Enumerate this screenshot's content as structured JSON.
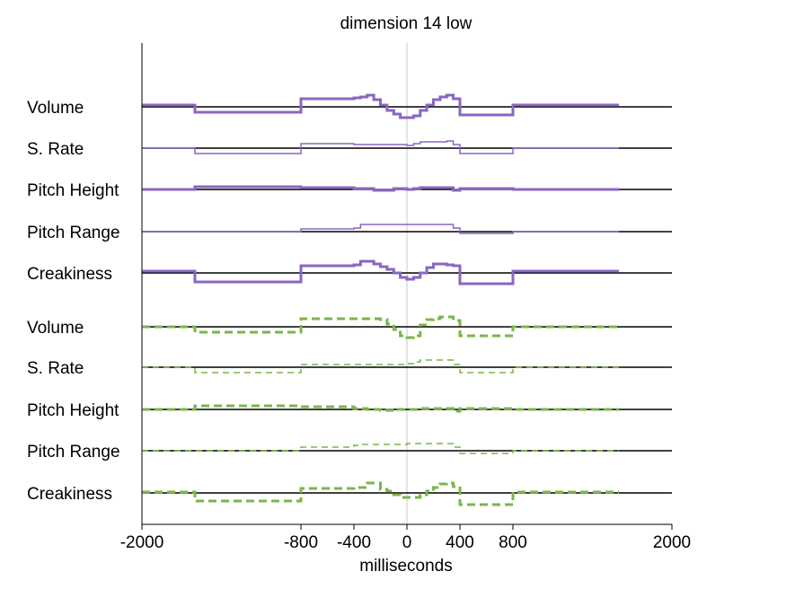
{
  "chart_data": {
    "type": "line",
    "title": "dimension 14 low",
    "xlabel": "milliseconds",
    "ylabel": "",
    "xlim": [
      -2000,
      2000
    ],
    "xticks": [
      -2000,
      -800,
      -400,
      0,
      400,
      800,
      2000
    ],
    "tick_labels": [
      "-2000",
      "-800",
      "-400",
      "0",
      "400",
      "800",
      "2000"
    ],
    "grid": false,
    "legend": "none",
    "colors": {
      "top": "#8a66c2",
      "bottom": "#7ab648",
      "baseline": "#000000",
      "zero_line": "#c8c8c8"
    },
    "x_edges": [
      -2000,
      -1600,
      -800,
      -400,
      -350,
      -300,
      -250,
      -200,
      -150,
      -100,
      -50,
      0,
      50,
      100,
      150,
      200,
      250,
      300,
      350,
      400,
      800,
      1600,
      2000
    ],
    "series": [
      {
        "label": "Volume",
        "group": "top",
        "style": "solid-thick",
        "values": [
          2,
          -6,
          9,
          10,
          11,
          13,
          8,
          2,
          -4,
          -8,
          -12,
          -12,
          -10,
          -4,
          2,
          8,
          11,
          13,
          9,
          -9,
          2
        ]
      },
      {
        "label": "S. Rate",
        "group": "top",
        "style": "solid-thin",
        "values": [
          0,
          -6,
          5,
          4,
          4,
          4,
          4,
          4,
          4,
          4,
          4,
          3,
          5,
          7,
          7,
          7,
          7,
          8,
          4,
          -6,
          0
        ]
      },
      {
        "label": "Pitch Height",
        "group": "top",
        "style": "solid-thick",
        "values": [
          0,
          3,
          2,
          1,
          1,
          1,
          -1,
          -1,
          -1,
          1,
          1,
          0,
          1,
          2,
          2,
          2,
          2,
          2,
          -1,
          1,
          0
        ]
      },
      {
        "label": "Pitch Range",
        "group": "top",
        "style": "solid-thin",
        "values": [
          0,
          0,
          3,
          4,
          8,
          8,
          8,
          8,
          8,
          8,
          8,
          8,
          8,
          8,
          8,
          8,
          8,
          8,
          4,
          -2,
          0
        ]
      },
      {
        "label": "Creakiness",
        "group": "top",
        "style": "solid-thick",
        "values": [
          2,
          -10,
          8,
          9,
          13,
          13,
          10,
          7,
          4,
          0,
          -5,
          -7,
          -5,
          0,
          6,
          10,
          10,
          9,
          8,
          -12,
          2
        ]
      },
      {
        "label": "Volume",
        "group": "bottom",
        "style": "dashed-thick",
        "values": [
          0,
          -6,
          9,
          9,
          9,
          9,
          9,
          8,
          3,
          -3,
          -10,
          -12,
          -10,
          2,
          8,
          9,
          11,
          11,
          7,
          -10,
          0
        ]
      },
      {
        "label": "S. Rate",
        "group": "bottom",
        "style": "dashed-thin",
        "values": [
          0,
          -6,
          3,
          3,
          3,
          3,
          3,
          3,
          3,
          3,
          3,
          4,
          6,
          8,
          8,
          8,
          8,
          8,
          3,
          -6,
          0
        ]
      },
      {
        "label": "Pitch Height",
        "group": "bottom",
        "style": "dashed-thick",
        "values": [
          0,
          4,
          3,
          1,
          1,
          0,
          0,
          -1,
          -1,
          0,
          0,
          0,
          0,
          1,
          1,
          1,
          1,
          1,
          -2,
          1,
          0
        ]
      },
      {
        "label": "Pitch Range",
        "group": "bottom",
        "style": "dashed-thin",
        "values": [
          0,
          0,
          4,
          6,
          7,
          7,
          7,
          7,
          7,
          7,
          7,
          8,
          8,
          8,
          8,
          8,
          8,
          8,
          4,
          -3,
          0
        ]
      },
      {
        "label": "Creakiness",
        "group": "bottom",
        "style": "dashed-thick",
        "values": [
          1,
          -9,
          5,
          6,
          6,
          11,
          11,
          4,
          2,
          -2,
          -5,
          -5,
          -5,
          -2,
          2,
          6,
          10,
          11,
          7,
          -13,
          1
        ]
      }
    ]
  }
}
